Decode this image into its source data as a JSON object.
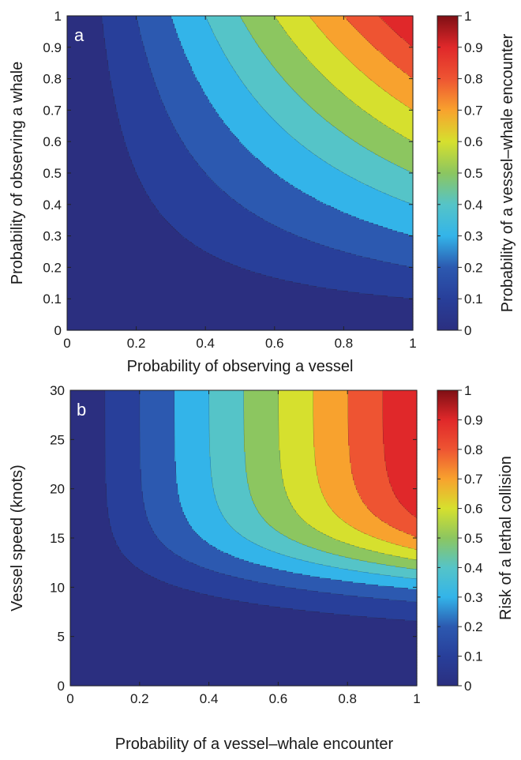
{
  "colors": {
    "levels": [
      "#2b2f80",
      "#283f9a",
      "#2c59b0",
      "#33b4e9",
      "#55c4c8",
      "#8cc660",
      "#d6e02e",
      "#f8a22e",
      "#ee5432",
      "#e0282a"
    ],
    "colorbar_top": "#7f0f14"
  },
  "chart_data": [
    {
      "type": "contour",
      "panel_label": "a",
      "xlabel": "Probability of observing a vessel",
      "ylabel": "Probability of observing a whale",
      "colorbar_label": "Probability of a vessel–whale encounter",
      "xlim": [
        0,
        1
      ],
      "ylim": [
        0,
        1
      ],
      "x_ticks": [
        "0",
        "0.2",
        "0.4",
        "0.6",
        "0.8",
        "1"
      ],
      "y_ticks": [
        "0",
        "0.1",
        "0.2",
        "0.3",
        "0.4",
        "0.5",
        "0.6",
        "0.7",
        "0.8",
        "0.9",
        "1"
      ],
      "colorbar_ticks": [
        "0",
        "0.1",
        "0.2",
        "0.3",
        "0.4",
        "0.5",
        "0.6",
        "0.7",
        "0.8",
        "0.9",
        "1"
      ],
      "clim": [
        0,
        1
      ],
      "function": "x * y",
      "contour_levels": [
        0.1,
        0.2,
        0.3,
        0.4,
        0.5,
        0.6,
        0.7,
        0.8,
        0.9
      ]
    },
    {
      "type": "contour",
      "panel_label": "b",
      "xlabel": "Probability of a vessel–whale encounter",
      "ylabel": "Vessel speed (knots)",
      "colorbar_label": "Risk of a lethal collision",
      "xlim": [
        0,
        1
      ],
      "ylim": [
        0,
        30
      ],
      "x_ticks": [
        "0",
        "0.2",
        "0.4",
        "0.6",
        "0.8",
        "1"
      ],
      "y_ticks": [
        "0",
        "5",
        "10",
        "15",
        "20",
        "25",
        "30"
      ],
      "colorbar_ticks": [
        "0",
        "0.1",
        "0.2",
        "0.3",
        "0.4",
        "0.5",
        "0.6",
        "0.7",
        "0.8",
        "0.9",
        "1"
      ],
      "clim": [
        0,
        1
      ],
      "function": "x / (1 + exp(-0.42 * (y - 11.8)))",
      "contour_levels": [
        0.1,
        0.2,
        0.3,
        0.4,
        0.5,
        0.6,
        0.7,
        0.8,
        0.9
      ]
    }
  ]
}
